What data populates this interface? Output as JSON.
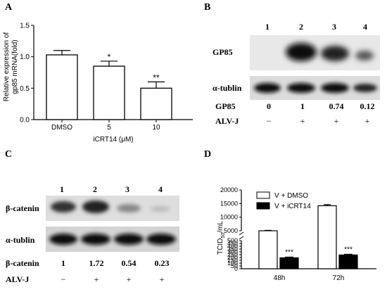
{
  "panels": {
    "A": {
      "letter": "A",
      "chart_data": {
        "type": "bar",
        "categories": [
          "DMSO",
          "5",
          "10"
        ],
        "values": [
          1.03,
          0.85,
          0.5
        ],
        "errors": [
          0.07,
          0.08,
          0.1
        ],
        "significance": [
          "",
          "*",
          "**"
        ],
        "xlabel": "iCRT14 (μM)",
        "ylabel_line1": "Relative expression of",
        "ylabel_line2": "gp85 mRNA(fold)",
        "ylim": [
          0,
          1.5
        ],
        "yticks": [
          "0.0",
          "0.5",
          "1.0",
          "1.5"
        ]
      }
    },
    "B": {
      "letter": "B",
      "lanes": [
        "1",
        "2",
        "3",
        "4"
      ],
      "row1_label": "GP85",
      "row2_label": "α-tublin",
      "quant_label": "GP85",
      "quant_values": [
        "0",
        "1",
        "0.74",
        "0.12"
      ],
      "treat_label": "ALV-J",
      "treat_values": [
        "−",
        "+",
        "+",
        "+"
      ]
    },
    "C": {
      "letter": "C",
      "lanes": [
        "1",
        "2",
        "3",
        "4"
      ],
      "row1_label": "β-catenin",
      "row2_label": "α-tublin",
      "quant_label": "β-catenin",
      "quant_values": [
        "1",
        "1.72",
        "0.54",
        "0.23"
      ],
      "treat_label": "ALV-J",
      "treat_values": [
        "−",
        "+",
        "+",
        "+"
      ]
    },
    "D": {
      "letter": "D",
      "chart_data": {
        "type": "bar",
        "categories": [
          "48h",
          "72h"
        ],
        "series": [
          {
            "name": "V + DMSO",
            "values": [
              5000,
              14200
            ],
            "color": "#ffffff"
          },
          {
            "name": "V + iCRT14",
            "values": [
              195,
              245
            ],
            "color": "#000000"
          }
        ],
        "significance": [
          "***",
          "***"
        ],
        "ylabel_main": "TCID",
        "ylabel_sub": "50",
        "ylabel_tail": "/mL",
        "yticks_lower": [
          "0",
          "50",
          "100",
          "150",
          "200",
          "250",
          "300",
          "350",
          "400",
          "450",
          "500"
        ],
        "yticks_upper": [
          "5000",
          "10000",
          "15000",
          "20000"
        ],
        "legend_position": "top-left"
      }
    }
  }
}
